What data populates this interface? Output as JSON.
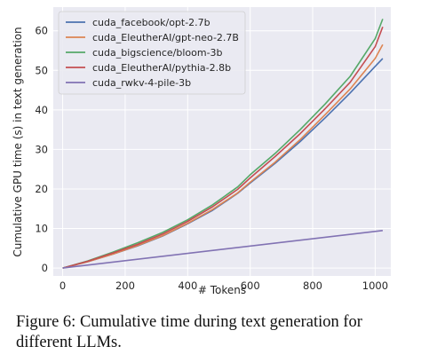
{
  "chart_data": {
    "type": "line",
    "title": "",
    "xlabel": "# Tokens",
    "ylabel": "Cumulative GPU time (s) in text generation",
    "xlim": [
      -30,
      1050
    ],
    "ylim": [
      -2,
      66
    ],
    "x_ticks": [
      0,
      200,
      400,
      600,
      800,
      1000
    ],
    "y_ticks": [
      0,
      10,
      20,
      30,
      40,
      50,
      60
    ],
    "grid": true,
    "legend_position": "top-left",
    "series": [
      {
        "name": "cuda_facebook/opt-2.7b",
        "color": "#4c72b0",
        "points": [
          [
            0,
            0
          ],
          [
            80,
            1.6
          ],
          [
            160,
            3.5
          ],
          [
            240,
            5.6
          ],
          [
            320,
            8.1
          ],
          [
            400,
            11.2
          ],
          [
            480,
            14.6
          ],
          [
            560,
            18.9
          ],
          [
            600,
            21.5
          ],
          [
            680,
            26.5
          ],
          [
            760,
            32.0
          ],
          [
            840,
            38.0
          ],
          [
            920,
            44.3
          ],
          [
            1000,
            51.0
          ],
          [
            1024,
            53.0
          ]
        ]
      },
      {
        "name": "cuda_EleutherAI/gpt-neo-2.7B",
        "color": "#dd8452",
        "points": [
          [
            0,
            0
          ],
          [
            80,
            1.6
          ],
          [
            160,
            3.5
          ],
          [
            240,
            5.7
          ],
          [
            320,
            8.2
          ],
          [
            400,
            11.3
          ],
          [
            480,
            14.8
          ],
          [
            560,
            19.0
          ],
          [
            600,
            21.7
          ],
          [
            680,
            26.8
          ],
          [
            760,
            32.5
          ],
          [
            840,
            38.8
          ],
          [
            920,
            45.3
          ],
          [
            1000,
            53.0
          ],
          [
            1024,
            56.5
          ]
        ]
      },
      {
        "name": "cuda_bigscience/bloom-3b",
        "color": "#55a868",
        "points": [
          [
            0,
            0
          ],
          [
            80,
            1.8
          ],
          [
            160,
            4.0
          ],
          [
            240,
            6.4
          ],
          [
            320,
            9.0
          ],
          [
            400,
            12.2
          ],
          [
            480,
            16.0
          ],
          [
            560,
            20.5
          ],
          [
            600,
            23.6
          ],
          [
            680,
            29.0
          ],
          [
            760,
            35.0
          ],
          [
            840,
            41.5
          ],
          [
            920,
            48.5
          ],
          [
            1000,
            58.0
          ],
          [
            1024,
            63.0
          ]
        ]
      },
      {
        "name": "cuda_EleutherAI/pythia-2.8b",
        "color": "#c44e52",
        "points": [
          [
            0,
            0
          ],
          [
            80,
            1.7
          ],
          [
            160,
            3.8
          ],
          [
            240,
            6.0
          ],
          [
            320,
            8.6
          ],
          [
            400,
            11.8
          ],
          [
            480,
            15.5
          ],
          [
            560,
            19.9
          ],
          [
            600,
            22.8
          ],
          [
            680,
            28.2
          ],
          [
            760,
            34.0
          ],
          [
            840,
            40.3
          ],
          [
            920,
            47.0
          ],
          [
            1000,
            56.0
          ],
          [
            1024,
            61.0
          ]
        ]
      },
      {
        "name": "cuda_rwkv-4-pile-3b",
        "color": "#8172b3",
        "points": [
          [
            0,
            0
          ],
          [
            1024,
            9.5
          ]
        ]
      }
    ]
  },
  "caption": {
    "line1": "Figure 6:  Cumulative time during text generation for",
    "line2": "different LLMs."
  }
}
